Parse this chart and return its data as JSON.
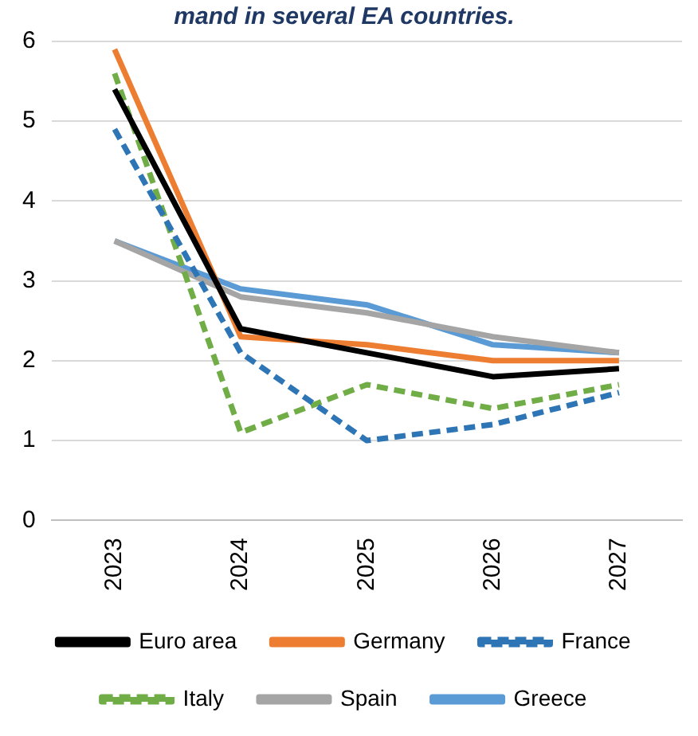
{
  "chart_data": {
    "type": "line",
    "title": "mand in several EA countries.",
    "categories": [
      "2023",
      "2024",
      "2025",
      "2026",
      "2027"
    ],
    "series": [
      {
        "name": "Euro area",
        "color": "#000000",
        "values": [
          5.4,
          2.4,
          2.1,
          1.8,
          1.9
        ]
      },
      {
        "name": "Germany",
        "color": "#ed7d31",
        "values": [
          5.9,
          2.3,
          2.2,
          2.0,
          2.0
        ]
      },
      {
        "name": "France",
        "color": "#2e75b6",
        "values": [
          4.9,
          2.1,
          1.0,
          1.2,
          1.6
        ],
        "line_style": "dashed"
      },
      {
        "name": "Italy",
        "color": "#70ad47",
        "values": [
          5.6,
          1.1,
          1.7,
          1.4,
          1.7
        ],
        "line_style": "dashed"
      },
      {
        "name": "Spain",
        "color": "#a5a5a5",
        "values": [
          3.5,
          2.8,
          2.6,
          2.3,
          2.1
        ]
      },
      {
        "name": "Greece",
        "color": "#5b9bd5",
        "values": [
          3.5,
          2.9,
          2.7,
          2.2,
          2.1
        ]
      }
    ],
    "ylim": [
      0,
      6
    ],
    "yticks": [
      0,
      1,
      2,
      3,
      4,
      5,
      6
    ],
    "grid": "y",
    "legend": "bottom",
    "marker": "none",
    "line_style": "solid"
  }
}
